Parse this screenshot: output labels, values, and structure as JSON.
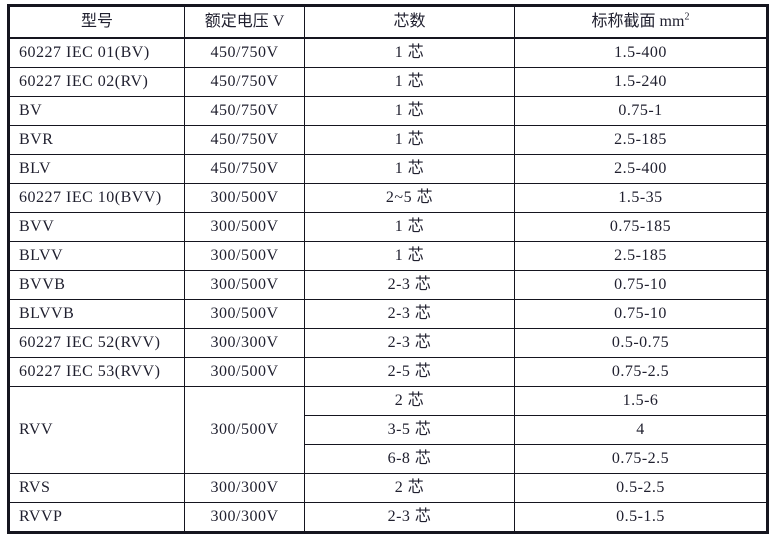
{
  "table": {
    "headers": {
      "model": "型号",
      "voltage": "额定电压 V",
      "cores": "芯数",
      "section": "标称截面 mm",
      "section_sup": "2"
    },
    "rows": [
      {
        "model": "60227 IEC 01(BV)",
        "voltage": "450/750V",
        "cores": "1 芯",
        "section": "1.5-400"
      },
      {
        "model": "60227 IEC 02(RV)",
        "voltage": "450/750V",
        "cores": "1 芯",
        "section": "1.5-240"
      },
      {
        "model": "BV",
        "voltage": "450/750V",
        "cores": "1 芯",
        "section": "0.75-1"
      },
      {
        "model": "BVR",
        "voltage": "450/750V",
        "cores": "1 芯",
        "section": "2.5-185"
      },
      {
        "model": "BLV",
        "voltage": "450/750V",
        "cores": "1 芯",
        "section": "2.5-400"
      },
      {
        "model": "60227 IEC 10(BVV)",
        "voltage": "300/500V",
        "cores": "2~5 芯",
        "section": "1.5-35"
      },
      {
        "model": "BVV",
        "voltage": "300/500V",
        "cores": "1 芯",
        "section": "0.75-185"
      },
      {
        "model": "BLVV",
        "voltage": "300/500V",
        "cores": "1 芯",
        "section": "2.5-185"
      },
      {
        "model": "BVVB",
        "voltage": "300/500V",
        "cores": "2-3 芯",
        "section": "0.75-10"
      },
      {
        "model": "BLVVB",
        "voltage": "300/500V",
        "cores": "2-3 芯",
        "section": "0.75-10"
      },
      {
        "model": "60227 IEC 52(RVV)",
        "voltage": "300/300V",
        "cores": "2-3 芯",
        "section": "0.5-0.75"
      },
      {
        "model": "60227 IEC 53(RVV)",
        "voltage": "300/500V",
        "cores": "2-5 芯",
        "section": "0.75-2.5"
      },
      {
        "model": "RVV",
        "model_rowspan": 3,
        "voltage": "300/500V",
        "voltage_rowspan": 3,
        "cores": "2 芯",
        "section": "1.5-6"
      },
      {
        "cores": "3-5 芯",
        "section": "4"
      },
      {
        "cores": "6-8 芯",
        "section": "0.75-2.5"
      },
      {
        "model": "RVS",
        "voltage": "300/300V",
        "cores": "2 芯",
        "section": "0.5-2.5"
      },
      {
        "model": "RVVP",
        "voltage": "300/300V",
        "cores": "2-3 芯",
        "section": "0.5-1.5"
      }
    ]
  }
}
